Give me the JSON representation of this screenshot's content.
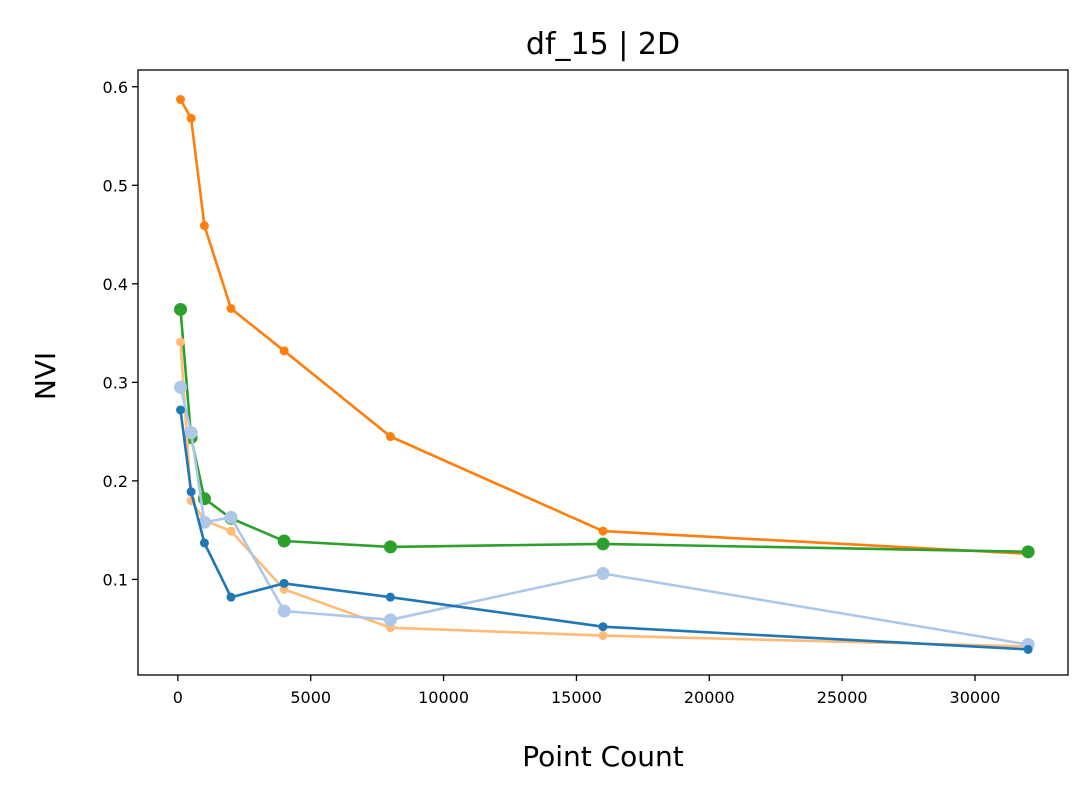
{
  "chart_data": {
    "type": "line",
    "title": "df_15 | 2D",
    "xlabel": "Point Count",
    "ylabel": "NVI",
    "xlim": [
      -1500,
      33500
    ],
    "ylim": [
      0.003,
      0.617
    ],
    "xticks": [
      0,
      5000,
      10000,
      15000,
      20000,
      25000,
      30000
    ],
    "xtick_labels": [
      "0",
      "5000",
      "10000",
      "15000",
      "20000",
      "25000",
      "30000"
    ],
    "yticks": [
      0.1,
      0.2,
      0.3,
      0.4,
      0.5,
      0.6
    ],
    "ytick_labels": [
      "0.1",
      "0.2",
      "0.3",
      "0.4",
      "0.5",
      "0.6"
    ],
    "grid": false,
    "series": [
      {
        "color": "#ff7f0e",
        "marker": "small",
        "x": [
          100,
          500,
          1000,
          2000,
          4000,
          8000,
          16000,
          32000
        ],
        "y": [
          0.587,
          0.568,
          0.459,
          0.375,
          0.332,
          0.245,
          0.149,
          0.126
        ]
      },
      {
        "color": "#2ca02c",
        "marker": "large",
        "x": [
          100,
          500,
          1000,
          2000,
          4000,
          8000,
          16000,
          32000
        ],
        "y": [
          0.374,
          0.244,
          0.182,
          0.162,
          0.139,
          0.133,
          0.136,
          0.128
        ]
      },
      {
        "color": "#ffbb78",
        "marker": "small",
        "x": [
          100,
          500,
          1000,
          2000,
          4000,
          8000,
          16000,
          32000
        ],
        "y": [
          0.341,
          0.18,
          0.16,
          0.149,
          0.09,
          0.051,
          0.043,
          0.032
        ]
      },
      {
        "color": "#aec7e8",
        "marker": "large",
        "x": [
          100,
          500,
          1000,
          2000,
          4000,
          8000,
          16000,
          32000
        ],
        "y": [
          0.295,
          0.249,
          0.158,
          0.163,
          0.068,
          0.059,
          0.106,
          0.034
        ]
      },
      {
        "color": "#1f77b4",
        "marker": "small",
        "x": [
          100,
          500,
          1000,
          2000,
          4000,
          8000,
          16000,
          32000
        ],
        "y": [
          0.272,
          0.189,
          0.137,
          0.082,
          0.096,
          0.082,
          0.052,
          0.029
        ]
      }
    ]
  }
}
